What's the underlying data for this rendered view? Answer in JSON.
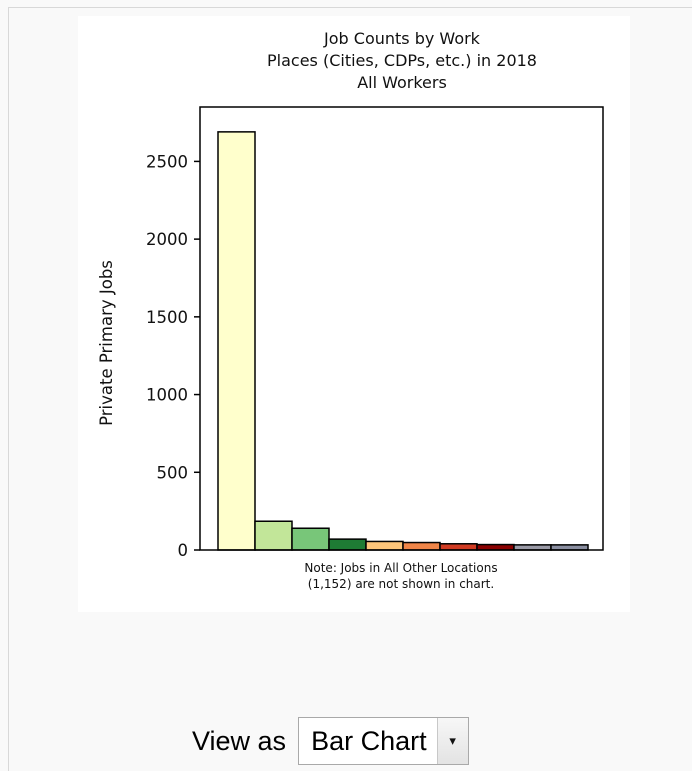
{
  "chart_data": {
    "type": "bar",
    "title_lines": [
      "Job Counts by Work",
      "Places (Cities, CDPs, etc.) in 2018",
      "All Workers"
    ],
    "xlabel": "",
    "ylabel": "Private Primary Jobs",
    "ylim": [
      0,
      2850
    ],
    "yticks": [
      0,
      500,
      1000,
      1500,
      2000,
      2500
    ],
    "ytick_labels": [
      "0",
      "500",
      "1000",
      "1500",
      "2000",
      "2500"
    ],
    "values": [
      2690,
      185,
      140,
      70,
      55,
      48,
      40,
      35,
      33,
      33
    ],
    "colors": [
      "#ffffcc",
      "#c2e699",
      "#78c679",
      "#1e7b34",
      "#fdc57a",
      "#f08548",
      "#d13b22",
      "#8b0000",
      "#9a9aa6",
      "#8a8ea0"
    ],
    "note_lines": [
      "Note: Jobs in All Other Locations",
      "(1,152) are not shown in chart."
    ]
  },
  "controls": {
    "view_label": "View as",
    "view_select": "Bar Chart",
    "arrow_icon": "▾"
  }
}
